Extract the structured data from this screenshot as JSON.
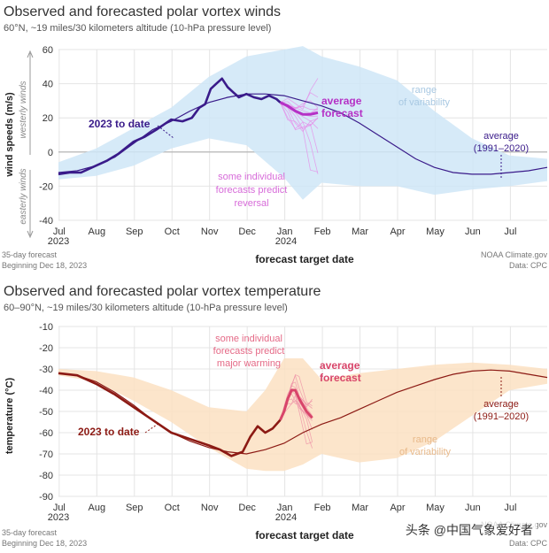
{
  "colors": {
    "wind_obs": "#3a1b8a",
    "wind_fc": "#b531c6",
    "wind_ens": "#e58ae8",
    "wind_band": "#cfe6f7",
    "temp_obs": "#8c1a14",
    "temp_fc": "#d8456a",
    "temp_ens": "#ee8fa6",
    "temp_band": "#fbe1c2",
    "zero": "#b0b0b0",
    "grid": "#e4e4e4"
  },
  "watermark": "头条 @中国气象爱好者",
  "chart_data": [
    {
      "type": "line",
      "title": "Observed and forecasted polar vortex winds",
      "subtitle": "60°N, ~19 miles/30 kilometers altitude (10-hPa pressure level)",
      "ylabel": "wind speeds (m/s)",
      "ylim": [
        -40,
        60
      ],
      "yticks": [
        "60",
        "40",
        "20",
        "0",
        "-20",
        "-40"
      ],
      "ytick_values": [
        60,
        40,
        20,
        0,
        -20,
        -40
      ],
      "westerly_label": "westerly winds",
      "easterly_label": "easterly winds",
      "xlabel": "forecast target date",
      "xticks": [
        "Jul",
        "Aug",
        "Sep",
        "Oct",
        "Nov",
        "Dec",
        "Jan",
        "Feb",
        "Mar",
        "Apr",
        "May",
        "Jun",
        "Jul"
      ],
      "xtick_months": [
        0,
        1,
        2,
        3,
        4,
        5,
        6,
        7,
        8,
        9,
        10,
        11,
        12
      ],
      "year_start": "2023",
      "year_mid": "2024",
      "note_line1": "35-day forecast",
      "note_line2": "Beginning Dec 18, 2023",
      "credit_line1": "NOAA Climate.gov",
      "credit_line2": "Data: CPC",
      "annotations": {
        "observed": "2023 to date",
        "forecast_line1": "average",
        "forecast_line2": "forecast",
        "range_line1": "range",
        "range_line2": "of variability",
        "climo_line1": "average",
        "climo_line2": "(1991–2020)",
        "ensemble_line1": "some individual",
        "ensemble_line2": "forecasts predict",
        "ensemble_line3": "reversal"
      },
      "series": [
        {
          "name": "average (1991–2020)",
          "x": [
            0,
            0.5,
            1,
            1.5,
            2,
            2.5,
            3,
            3.5,
            4,
            4.5,
            5,
            5.5,
            6,
            6.5,
            7,
            7.5,
            8,
            8.5,
            9,
            9.5,
            10,
            10.5,
            11,
            11.5,
            12,
            12.5,
            13
          ],
          "values": [
            -12,
            -11,
            -8,
            -3,
            5,
            13,
            18,
            24,
            29,
            32,
            34,
            34,
            33,
            30,
            27,
            23,
            17,
            10,
            3,
            -4,
            -9,
            -12,
            -13,
            -13,
            -12,
            -11,
            -9
          ]
        },
        {
          "name": "2023 to date",
          "x": [
            0,
            0.3,
            0.6,
            1,
            1.3,
            1.6,
            2,
            2.3,
            2.6,
            3,
            3.3,
            3.55,
            3.75,
            3.9,
            4.05,
            4.2,
            4.35,
            4.5,
            4.65,
            4.8,
            5,
            5.2,
            5.4,
            5.6,
            5.8,
            5.9
          ],
          "values": [
            -13,
            -12,
            -12,
            -8,
            -5,
            -1,
            6,
            9,
            13,
            19,
            18,
            20,
            26,
            28,
            37,
            40,
            43,
            38,
            35,
            32,
            34,
            32,
            31,
            33,
            31,
            29
          ]
        },
        {
          "name": "average forecast",
          "x": [
            5.9,
            6.1,
            6.3,
            6.5,
            6.7,
            6.9
          ],
          "values": [
            29,
            27,
            24,
            22,
            22,
            23
          ]
        },
        {
          "name": "range upper",
          "x": [
            0,
            1,
            2,
            3,
            4,
            5,
            6,
            6.5,
            7,
            8,
            9,
            10,
            11,
            12,
            13
          ],
          "values": [
            -6,
            2,
            14,
            26,
            44,
            56,
            60,
            62,
            56,
            50,
            42,
            24,
            8,
            -2,
            -4
          ]
        },
        {
          "name": "range lower",
          "x": [
            0,
            1,
            2,
            3,
            4,
            5,
            6,
            6.5,
            7,
            8,
            9,
            10,
            11,
            12,
            13
          ],
          "values": [
            -16,
            -14,
            -8,
            2,
            8,
            4,
            -15,
            -28,
            -18,
            -20,
            -20,
            -25,
            -22,
            -20,
            -17
          ]
        }
      ]
    },
    {
      "type": "line",
      "title": "Observed and forecasted polar vortex temperature",
      "subtitle": "60–90°N, ~19 miles/30 kilometers altitude (10-hPa pressure level)",
      "ylabel": "temperature (°C)",
      "ylim": [
        -90,
        -10
      ],
      "yticks": [
        "-10",
        "-20",
        "-30",
        "-40",
        "-50",
        "-60",
        "-70",
        "-80",
        "-90"
      ],
      "ytick_values": [
        -10,
        -20,
        -30,
        -40,
        -50,
        -60,
        -70,
        -80,
        -90
      ],
      "xlabel": "forecast target date",
      "xticks": [
        "Jul",
        "Aug",
        "Sep",
        "Oct",
        "Nov",
        "Dec",
        "Jan",
        "Feb",
        "Mar",
        "Apr",
        "May",
        "Jun",
        "Jul"
      ],
      "xtick_months": [
        0,
        1,
        2,
        3,
        4,
        5,
        6,
        7,
        8,
        9,
        10,
        11,
        12
      ],
      "year_start": "2023",
      "year_mid": "2024",
      "note_line1": "35-day forecast",
      "note_line2": "Beginning Dec 18, 2023",
      "credit_line1": "NOAA Climate.gov",
      "credit_line2": "Data: CPC",
      "annotations": {
        "observed": "2023 to date",
        "forecast_line1": "average",
        "forecast_line2": "forecast",
        "range_line1": "range",
        "range_line2": "of variability",
        "climo_line1": "average",
        "climo_line2": "(1991–2020)",
        "ensemble_line1": "some individual",
        "ensemble_line2": "forecasts predict",
        "ensemble_line3": "major warming"
      },
      "series": [
        {
          "name": "average (1991–2020)",
          "x": [
            0,
            0.5,
            1,
            1.5,
            2,
            2.5,
            3,
            3.5,
            4,
            4.5,
            5,
            5.5,
            6,
            6.5,
            7,
            7.5,
            8,
            8.5,
            9,
            9.5,
            10,
            10.5,
            11,
            11.5,
            12,
            12.5,
            13
          ],
          "values": [
            -32,
            -33,
            -36,
            -41,
            -47,
            -54,
            -60,
            -64,
            -67,
            -69,
            -70,
            -68,
            -65,
            -60,
            -56,
            -53,
            -49,
            -45,
            -41,
            -38,
            -35,
            -32.5,
            -31,
            -30.5,
            -31,
            -32.5,
            -34
          ]
        },
        {
          "name": "2023 to date",
          "x": [
            0,
            0.5,
            1,
            1.5,
            2,
            2.5,
            3,
            3.5,
            4,
            4.3,
            4.6,
            4.9,
            5.1,
            5.3,
            5.5,
            5.7,
            5.9
          ],
          "values": [
            -32,
            -33,
            -37,
            -42,
            -48,
            -54,
            -60,
            -63,
            -66,
            -68,
            -71,
            -69,
            -62,
            -57,
            -60,
            -58,
            -54
          ]
        },
        {
          "name": "average forecast",
          "x": [
            5.9,
            6.0,
            6.1,
            6.2,
            6.3,
            6.4,
            6.6,
            6.75
          ],
          "values": [
            -54,
            -50,
            -44,
            -40,
            -40,
            -44,
            -50,
            -53
          ]
        },
        {
          "name": "range upper",
          "x": [
            0,
            1,
            2,
            3,
            4,
            5,
            5.5,
            6,
            6.5,
            7,
            8,
            9,
            10,
            11,
            12,
            13
          ],
          "values": [
            -30,
            -31,
            -34,
            -40,
            -48,
            -50,
            -40,
            -25,
            -25,
            -35,
            -32,
            -30,
            -28,
            -27,
            -28,
            -30
          ]
        },
        {
          "name": "range lower",
          "x": [
            0,
            1,
            2,
            3,
            4,
            5,
            5.5,
            6,
            6.5,
            7,
            8,
            9,
            10,
            11,
            12,
            13
          ],
          "values": [
            -33,
            -36,
            -45,
            -55,
            -67,
            -77,
            -78,
            -78,
            -75,
            -70,
            -74,
            -72,
            -64,
            -52,
            -40,
            -37
          ]
        }
      ]
    }
  ]
}
